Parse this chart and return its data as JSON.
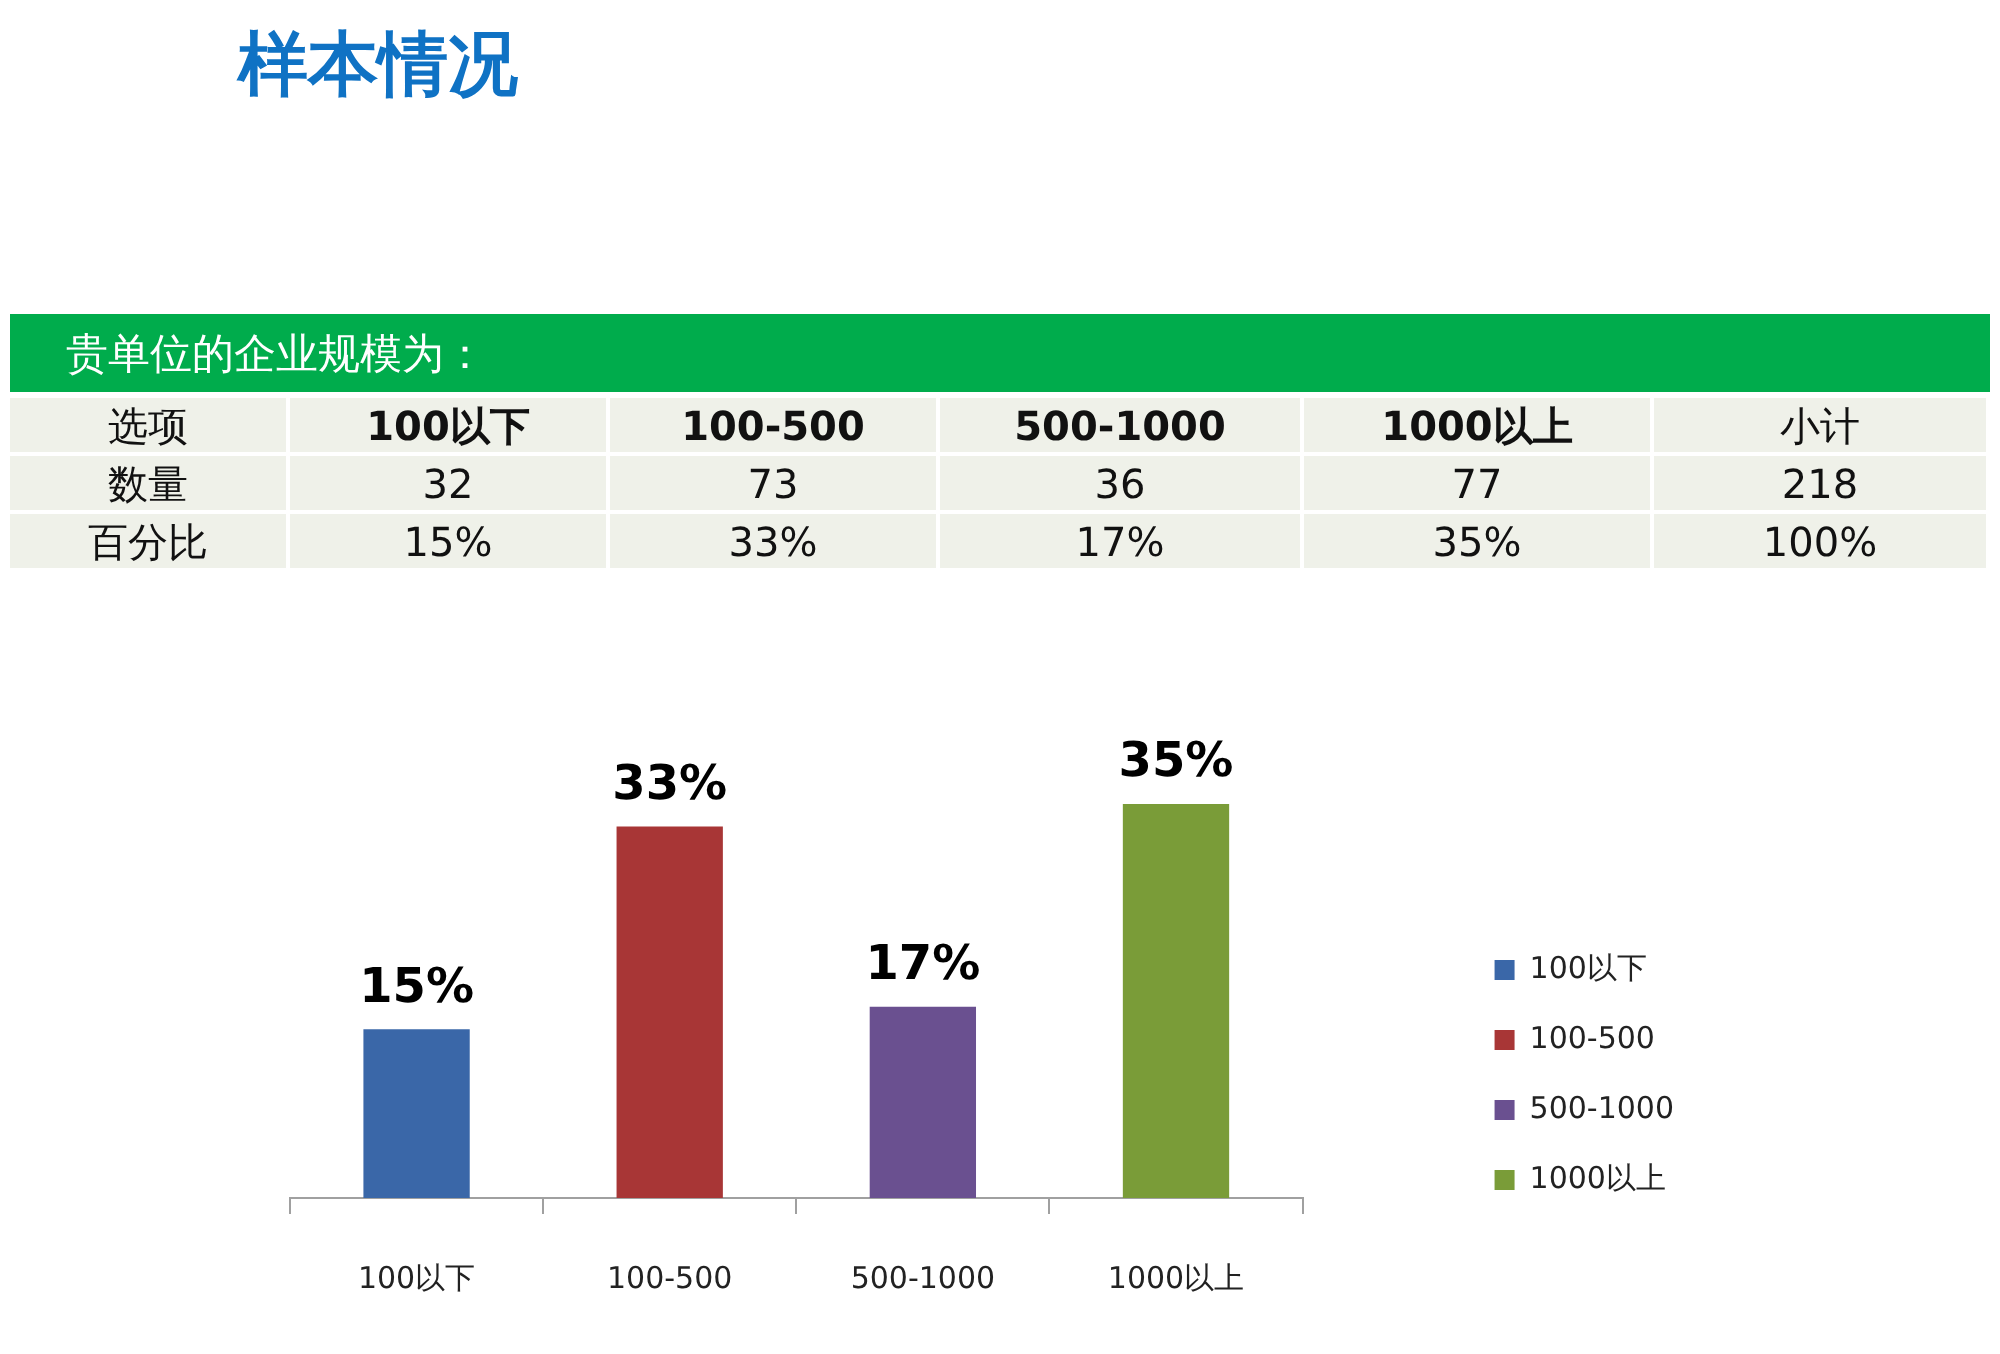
{
  "chart_data": [
    {
      "type": "other",
      "title": "样本情况",
      "subtitle": "贵单位的企业规模为：",
      "annotations": [
        "选项",
        "100以下",
        "100-500",
        "500-1000",
        "1000以上",
        "小计",
        "数量",
        "32",
        "73",
        "36",
        "77",
        "218",
        "百分比",
        "15%",
        "33%",
        "17%",
        "35%",
        "100%"
      ]
    },
    {
      "type": "bar",
      "categories": [
        "100以下",
        "100-500",
        "500-1000",
        "1000以上"
      ],
      "series": [
        {
          "name": "100以下",
          "color": "#3a67a8",
          "values": [
            15,
            null,
            null,
            null
          ],
          "value_labels": [
            "15%",
            null,
            null,
            null
          ]
        },
        {
          "name": "100-500",
          "color": "#a83636",
          "values": [
            null,
            33,
            null,
            null
          ],
          "value_labels": [
            null,
            "33%",
            null,
            null
          ]
        },
        {
          "name": "500-1000",
          "color": "#6a5090",
          "values": [
            null,
            null,
            17,
            null
          ],
          "value_labels": [
            null,
            null,
            "17%",
            null
          ]
        },
        {
          "name": "1000以上",
          "color": "#7a9c38",
          "values": [
            null,
            null,
            null,
            35
          ],
          "value_labels": [
            null,
            null,
            null,
            "35%"
          ]
        }
      ],
      "legend": "right",
      "grid": false
    }
  ]
}
